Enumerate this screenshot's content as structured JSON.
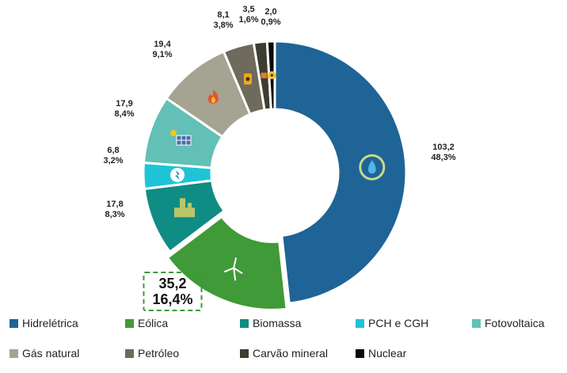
{
  "chart_data": {
    "type": "pie",
    "donut": true,
    "categories": [
      "Hidrelétrica",
      "Eólica",
      "Biomassa",
      "PCH e CGH",
      "Fotovoltaica",
      "Gás natural",
      "Petróleo",
      "Carvão mineral",
      "Nuclear"
    ],
    "values": [
      103.2,
      35.2,
      17.8,
      6.8,
      17.9,
      19.4,
      8.1,
      3.5,
      2.0
    ],
    "value_labels": [
      "103,2",
      "35,2",
      "17,8",
      "6,8",
      "17,9",
      "19,4",
      "8,1",
      "3,5",
      "2,0"
    ],
    "percent_labels": [
      "48,3%",
      "16,4%",
      "8,3%",
      "3,2%",
      "8,4%",
      "9,1%",
      "3,8%",
      "1,6%",
      "0,9%"
    ],
    "colors": [
      "#1f6496",
      "#3f9a37",
      "#0f8c84",
      "#1fc3d6",
      "#62c0b6",
      "#a5a391",
      "#6e6a5c",
      "#3d3d31",
      "#0a0a0a"
    ],
    "icons": [
      "hydro-dam-icon",
      "wind-turbine-icon",
      "biomass-plant-icon",
      "small-hydro-icon",
      "solar-panel-icon",
      "gas-flame-icon",
      "oil-barrel-icon",
      "coal-wagon-icon",
      "nuclear-icon"
    ],
    "highlighted": "Eólica",
    "legend_position": "bottom"
  },
  "legend": {
    "rows": [
      [
        "Hidrelétrica",
        "Eólica",
        "Biomassa",
        "PCH e CGH",
        "Fotovoltaica"
      ],
      [
        "Gás natural",
        "Petróleo",
        "Carvão mineral",
        "Nuclear"
      ]
    ]
  }
}
